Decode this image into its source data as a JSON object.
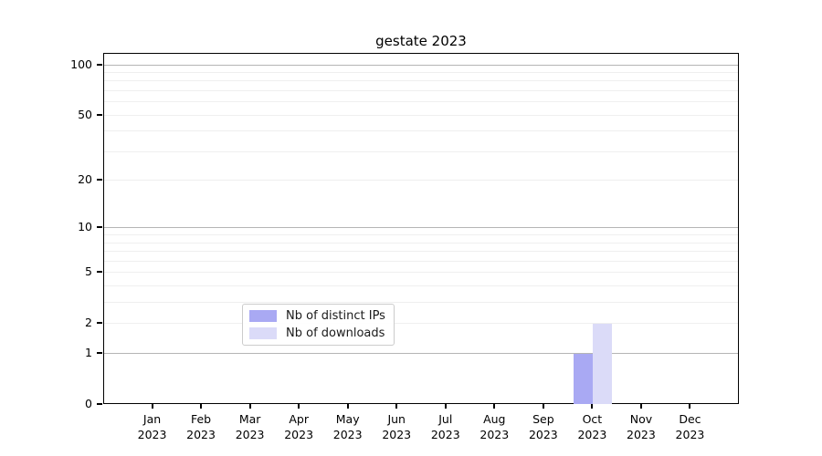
{
  "chart_data": {
    "type": "bar",
    "title": "gestate 2023",
    "categories": [
      "Jan",
      "Feb",
      "Mar",
      "Apr",
      "May",
      "Jun",
      "Jul",
      "Aug",
      "Sep",
      "Oct",
      "Nov",
      "Dec"
    ],
    "x_tick_year": "2023",
    "series": [
      {
        "name": "Nb of distinct IPs",
        "color": "#a9a9f3",
        "values": [
          0,
          0,
          0,
          0,
          0,
          0,
          0,
          0,
          0,
          1,
          0,
          0
        ]
      },
      {
        "name": "Nb of downloads",
        "color": "#dbdbf8",
        "values": [
          0,
          0,
          0,
          0,
          0,
          0,
          0,
          0,
          0,
          2,
          0,
          0
        ]
      }
    ],
    "y_scale": "log1p",
    "ylim": [
      0,
      117
    ],
    "y_tick_labels": [
      0,
      1,
      2,
      5,
      10,
      20,
      50,
      100
    ],
    "y_major_gridlines": [
      1,
      10,
      100
    ],
    "y_minor_gridlines": [
      2,
      3,
      4,
      5,
      6,
      7,
      8,
      9,
      20,
      30,
      40,
      50,
      60,
      70,
      80,
      90
    ],
    "legend": {
      "position": "lower center inside",
      "entries": [
        "Nb of distinct IPs",
        "Nb of downloads"
      ]
    },
    "colors": {
      "major_grid": "#b5b5b5",
      "minor_grid": "#efefef",
      "spine": "#000000",
      "background": "#ffffff"
    }
  }
}
